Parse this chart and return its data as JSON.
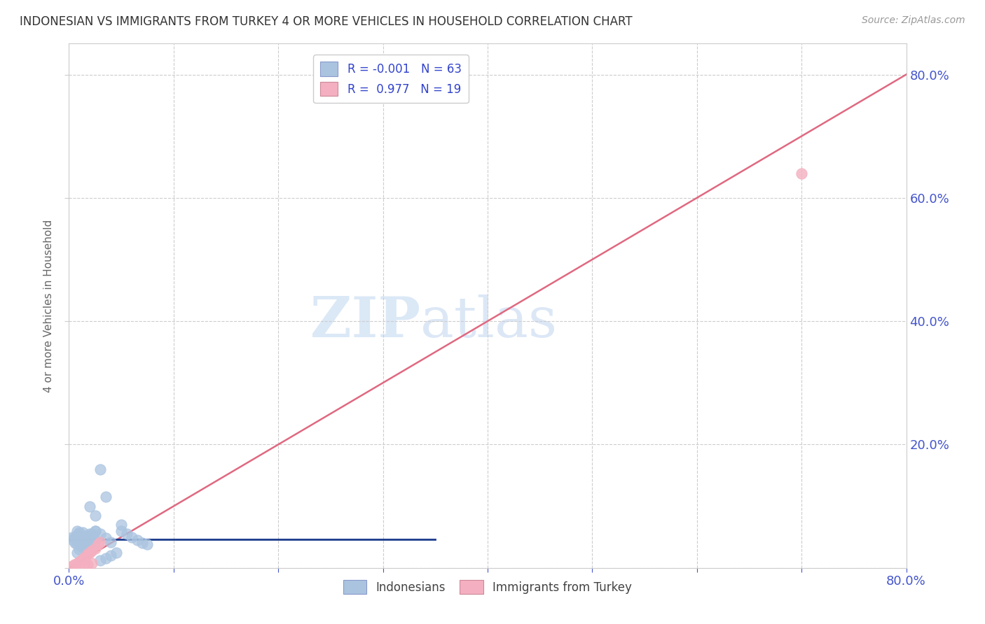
{
  "title": "INDONESIAN VS IMMIGRANTS FROM TURKEY 4 OR MORE VEHICLES IN HOUSEHOLD CORRELATION CHART",
  "source": "Source: ZipAtlas.com",
  "ylabel": "4 or more Vehicles in Household",
  "watermark": "ZIPatlas",
  "xlim": [
    0.0,
    0.8
  ],
  "ylim": [
    0.0,
    0.85
  ],
  "x_ticks": [
    0.0,
    0.1,
    0.2,
    0.3,
    0.4,
    0.5,
    0.6,
    0.7,
    0.8
  ],
  "y_ticks": [
    0.0,
    0.2,
    0.4,
    0.6,
    0.8
  ],
  "indonesian_color": "#aac4e0",
  "turkey_color": "#f4b0c0",
  "indonesian_line_color": "#1a3a8c",
  "turkey_line_color": "#e06880",
  "indonesian_R": "-0.001",
  "indonesian_N": "63",
  "turkey_R": "0.977",
  "turkey_N": "19",
  "legend_labels": [
    "Indonesians",
    "Immigrants from Turkey"
  ],
  "title_color": "#333333",
  "tick_color": "#4455cc",
  "grid_color": "#cccccc",
  "background_color": "#ffffff",
  "indonesian_x": [
    0.003,
    0.004,
    0.005,
    0.006,
    0.007,
    0.008,
    0.009,
    0.01,
    0.011,
    0.012,
    0.013,
    0.014,
    0.015,
    0.016,
    0.017,
    0.018,
    0.019,
    0.02,
    0.021,
    0.022,
    0.023,
    0.024,
    0.025,
    0.008,
    0.009,
    0.01,
    0.011,
    0.012,
    0.013,
    0.014,
    0.015,
    0.016,
    0.017,
    0.018,
    0.019,
    0.02,
    0.025,
    0.03,
    0.035,
    0.04,
    0.008,
    0.01,
    0.012,
    0.014,
    0.016,
    0.018,
    0.02,
    0.025,
    0.03,
    0.035,
    0.04,
    0.045,
    0.05,
    0.055,
    0.06,
    0.065,
    0.07,
    0.075,
    0.02,
    0.025,
    0.03,
    0.035,
    0.05
  ],
  "indonesian_y": [
    0.05,
    0.045,
    0.048,
    0.04,
    0.052,
    0.038,
    0.055,
    0.042,
    0.048,
    0.035,
    0.058,
    0.044,
    0.04,
    0.05,
    0.045,
    0.038,
    0.052,
    0.042,
    0.048,
    0.055,
    0.04,
    0.038,
    0.045,
    0.06,
    0.055,
    0.058,
    0.05,
    0.045,
    0.042,
    0.038,
    0.052,
    0.048,
    0.044,
    0.04,
    0.038,
    0.05,
    0.06,
    0.055,
    0.048,
    0.042,
    0.025,
    0.03,
    0.035,
    0.04,
    0.045,
    0.05,
    0.055,
    0.06,
    0.012,
    0.015,
    0.02,
    0.025,
    0.06,
    0.055,
    0.05,
    0.045,
    0.04,
    0.038,
    0.1,
    0.085,
    0.16,
    0.115,
    0.07
  ],
  "turkey_x": [
    0.003,
    0.005,
    0.007,
    0.009,
    0.01,
    0.012,
    0.014,
    0.016,
    0.018,
    0.02,
    0.022,
    0.025,
    0.028,
    0.03,
    0.012,
    0.015,
    0.018,
    0.022,
    0.7
  ],
  "turkey_y": [
    0.003,
    0.005,
    0.007,
    0.009,
    0.01,
    0.012,
    0.015,
    0.018,
    0.022,
    0.025,
    0.028,
    0.032,
    0.038,
    0.042,
    0.01,
    0.008,
    0.005,
    0.008,
    0.64
  ],
  "indonesian_trend_x": [
    0.0,
    0.35
  ],
  "indonesian_trend_y": [
    0.046,
    0.046
  ],
  "turkey_trend_x": [
    0.0,
    0.8
  ],
  "turkey_trend_y": [
    0.0,
    0.8
  ]
}
